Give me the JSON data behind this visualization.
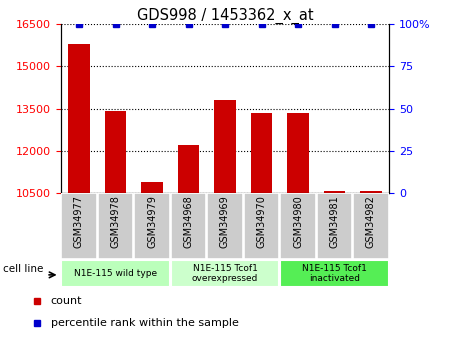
{
  "title": "GDS998 / 1453362_x_at",
  "samples": [
    "GSM34977",
    "GSM34978",
    "GSM34979",
    "GSM34968",
    "GSM34969",
    "GSM34970",
    "GSM34980",
    "GSM34981",
    "GSM34982"
  ],
  "counts": [
    15800,
    13400,
    10900,
    12200,
    13800,
    13350,
    13350,
    10580,
    10580
  ],
  "percentiles": [
    100,
    100,
    100,
    100,
    100,
    100,
    100,
    100,
    100
  ],
  "ylim_left": [
    10500,
    16500
  ],
  "ylim_right": [
    0,
    100
  ],
  "yticks_left": [
    10500,
    12000,
    13500,
    15000,
    16500
  ],
  "yticks_right": [
    0,
    25,
    50,
    75,
    100
  ],
  "bar_color": "#cc0000",
  "dot_color": "#0000cc",
  "tick_bg_color": "#cccccc",
  "group_bg_light": "#bbffbb",
  "group_bg_dark": "#44ee44",
  "group_ranges": [
    [
      0,
      3
    ],
    [
      3,
      6
    ],
    [
      6,
      9
    ]
  ],
  "group_labels": [
    "N1E-115 wild type",
    "N1E-115 Tcof1\noverexpressed",
    "N1E-115 Tcof1\ninactivated"
  ],
  "group_bgs": [
    "#bbffbb",
    "#ccffcc",
    "#55ee55"
  ],
  "legend_count_label": "count",
  "legend_pct_label": "percentile rank within the sample",
  "cell_line_label": "cell line"
}
